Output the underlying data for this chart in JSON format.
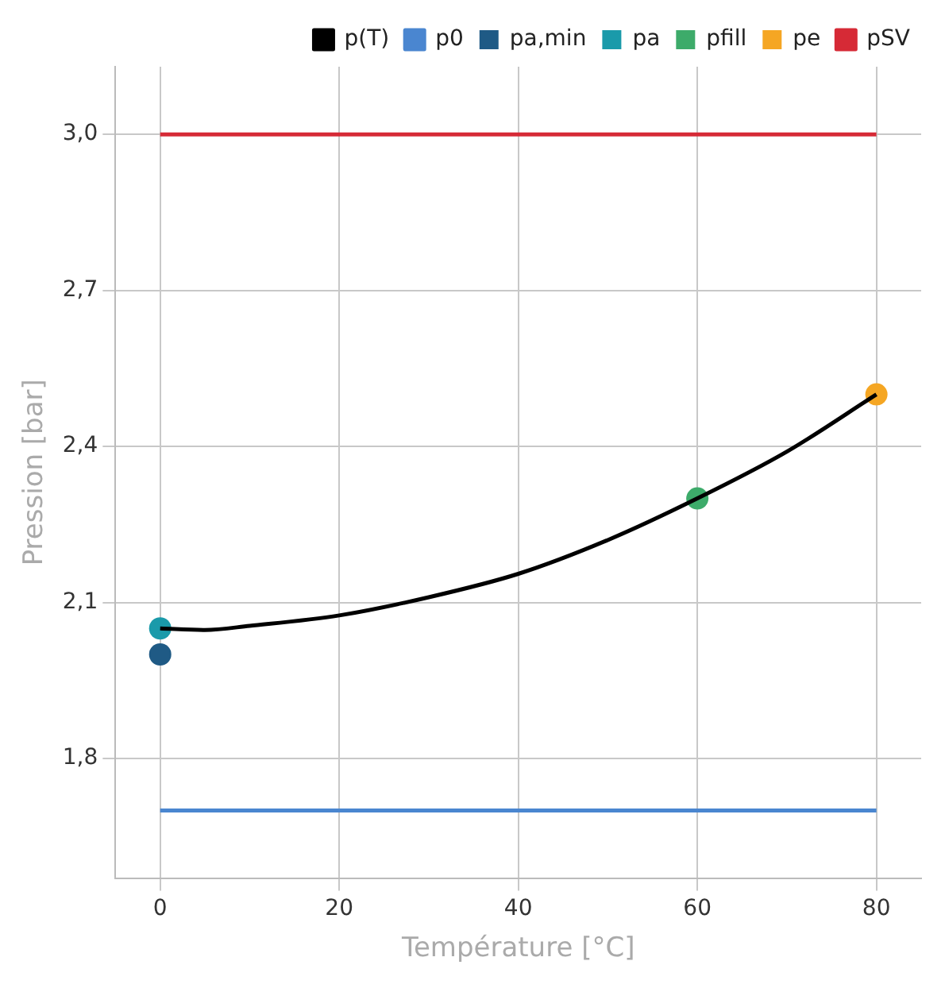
{
  "chart_data": {
    "type": "line",
    "xlabel": "Température [°C]",
    "ylabel": "Pression [bar]",
    "xlim": [
      -5,
      85
    ],
    "xticks": [
      0,
      20,
      40,
      60,
      80
    ],
    "ylim": [
      1.57,
      3.13
    ],
    "yticks": [
      {
        "value": 1.8,
        "label": "1,8"
      },
      {
        "value": 2.1,
        "label": "2,1"
      },
      {
        "value": 2.4,
        "label": "2,4"
      },
      {
        "value": 2.7,
        "label": "2,7"
      },
      {
        "value": 3.0,
        "label": "3,0"
      }
    ],
    "grid": true,
    "legend": "top",
    "line_style": "solid",
    "series": [
      {
        "name": "p(T)",
        "marker": "none",
        "color": "#000000",
        "x": [
          0,
          5,
          10,
          20,
          30,
          40,
          50,
          60,
          70,
          80
        ],
        "values": [
          2.05,
          2.047,
          2.055,
          2.075,
          2.11,
          2.155,
          2.22,
          2.3,
          2.39,
          2.5
        ]
      },
      {
        "name": "p0",
        "marker": "none",
        "color": "#4a86d0",
        "x": [
          0,
          80
        ],
        "values": [
          1.7,
          1.7
        ]
      },
      {
        "name": "pa,min",
        "type": "scatter",
        "marker": "circle",
        "color": "#1f5a85",
        "x": [
          0
        ],
        "values": [
          2.0
        ]
      },
      {
        "name": "pa",
        "type": "scatter",
        "marker": "circle",
        "color": "#1a9aaa",
        "x": [
          0
        ],
        "values": [
          2.05
        ]
      },
      {
        "name": "pfill",
        "type": "scatter",
        "marker": "circle",
        "color": "#3dab6a",
        "x": [
          60
        ],
        "values": [
          2.3
        ]
      },
      {
        "name": "pe",
        "type": "scatter",
        "marker": "circle",
        "color": "#f5a623",
        "x": [
          80
        ],
        "values": [
          2.5
        ]
      },
      {
        "name": "pSV",
        "marker": "none",
        "color": "#d62a36",
        "x": [
          0,
          80
        ],
        "values": [
          3.0,
          3.0
        ]
      }
    ]
  }
}
